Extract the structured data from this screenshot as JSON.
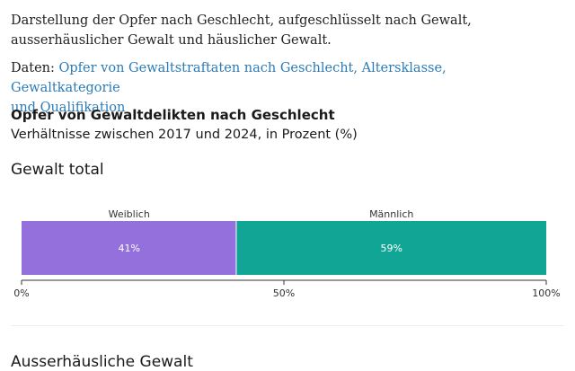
{
  "intro": {
    "line1": "Darstellung der Opfer nach Geschlecht, aufgeschlüsselt nach Gewalt,",
    "line2": "ausserhäuslicher Gewalt und häuslicher Gewalt."
  },
  "source": {
    "prefix": "Daten:",
    "link_line1": "Opfer von Gewaltstraftaten nach Geschlecht, Altersklasse, Gewaltkategorie",
    "link_line2": "und Qualifikation"
  },
  "chart": {
    "title": "Opfer von Gewaltdelikten nach Geschlecht",
    "subtitle": "Verhältnisse zwischen 2017 und 2024, in Prozent (%)",
    "panel_title": "Gewalt total",
    "next_panel_title": "Ausserhäusliche Gewalt"
  },
  "chart_data": {
    "type": "bar",
    "orientation": "horizontal-stacked-100",
    "title": "Gewalt total",
    "series": [
      {
        "name": "Weiblich",
        "value": 41,
        "label": "41%",
        "color": "#9370db"
      },
      {
        "name": "Männlich",
        "value": 59,
        "label": "59%",
        "color": "#10a595"
      }
    ],
    "x_ticks": [
      "0%",
      "50%",
      "100%"
    ],
    "xlim": [
      0,
      100
    ]
  }
}
